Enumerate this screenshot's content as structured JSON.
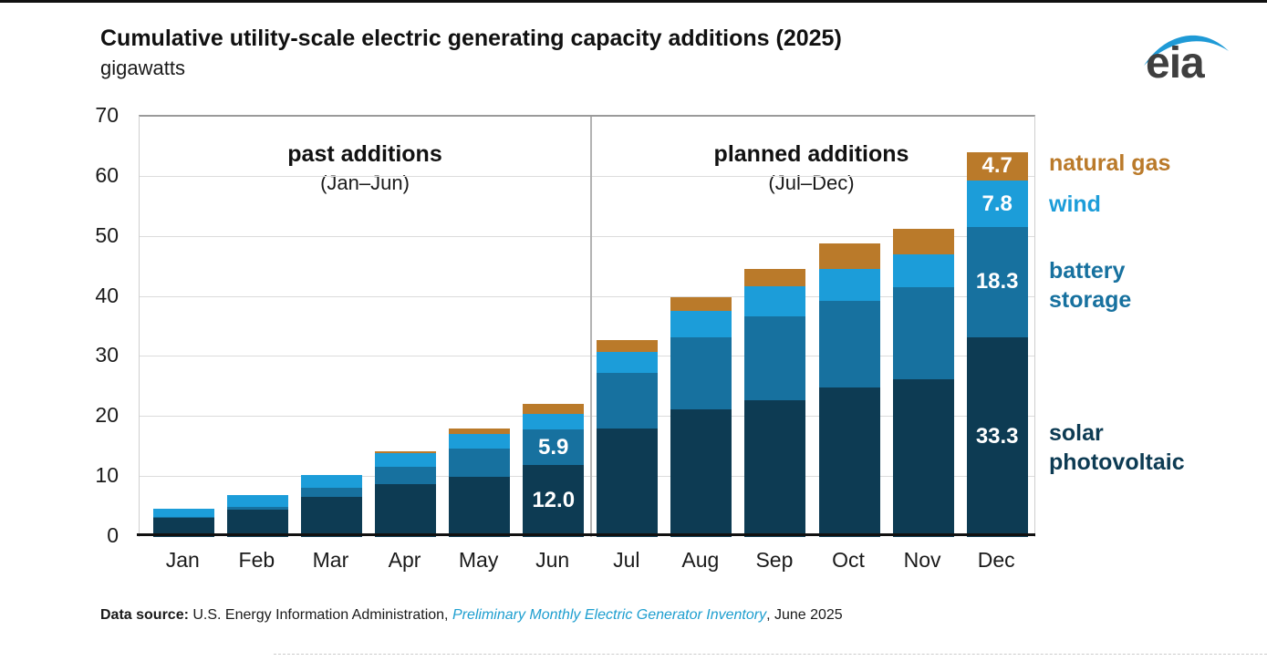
{
  "title": "Cumulative utility-scale electric generating capacity additions (2025)",
  "subtitle": "gigawatts",
  "logo_text": "eia",
  "sections": {
    "past": {
      "label": "past additions",
      "range": "(Jan–Jun)"
    },
    "planned": {
      "label": "planned additions",
      "range": "(Jul–Dec)"
    }
  },
  "legend": {
    "natural_gas": "natural gas",
    "wind": "wind",
    "battery_storage": "battery\nstorage",
    "solar_pv": "solar\nphotovoltaic"
  },
  "footer": {
    "label": "Data source:",
    "body": " U.S. Energy Information Administration, ",
    "link": "Preliminary Monthly Electric Generator Inventory",
    "suffix": ", June 2025"
  },
  "colors": {
    "solar": "#0d3b53",
    "battery_storage": "#17719f",
    "wind": "#1c9dd9",
    "natural_gas": "#ba7a2a",
    "link": "#1d9ecf",
    "logo_swoosh": "#1f9ad6"
  },
  "chart_data": {
    "type": "bar",
    "stacked": true,
    "title": "Cumulative utility-scale electric generating capacity additions (2025)",
    "ylabel": "gigawatts",
    "xlabel": "",
    "categories": [
      "Jan",
      "Feb",
      "Mar",
      "Apr",
      "May",
      "Jun",
      "Jul",
      "Aug",
      "Sep",
      "Oct",
      "Nov",
      "Dec"
    ],
    "series": [
      {
        "name": "solar photovoltaic",
        "color": "#0d3b53",
        "values": [
          3.2,
          4.6,
          6.7,
          8.8,
          10.0,
          12.0,
          18.1,
          21.2,
          22.8,
          24.9,
          26.3,
          33.3
        ]
      },
      {
        "name": "battery storage",
        "color": "#17719f",
        "values": [
          0.2,
          0.4,
          1.5,
          2.9,
          4.8,
          5.9,
          9.2,
          12.1,
          13.9,
          14.5,
          15.3,
          18.3
        ]
      },
      {
        "name": "wind",
        "color": "#1c9dd9",
        "values": [
          1.3,
          2.0,
          2.1,
          2.3,
          2.3,
          2.6,
          3.6,
          4.4,
          5.0,
          5.3,
          5.4,
          7.8
        ]
      },
      {
        "name": "natural gas",
        "color": "#ba7a2a",
        "values": [
          0.0,
          0.0,
          0.0,
          0.3,
          0.9,
          1.7,
          1.9,
          2.3,
          3.0,
          4.2,
          4.4,
          4.7
        ]
      }
    ],
    "ylim": [
      0,
      70
    ],
    "yticks": [
      0,
      10,
      20,
      30,
      40,
      50,
      60,
      70
    ],
    "grid": "horizontal",
    "divider_after_category": "Jun",
    "section_labels": [
      "past additions (Jan–Jun)",
      "planned additions (Jul–Dec)"
    ],
    "legend_position": "right",
    "legend_order": [
      "natural gas",
      "wind",
      "battery storage",
      "solar photovoltaic"
    ],
    "bar_labels": [
      {
        "category": "Jun",
        "series": "solar photovoltaic",
        "text": "12.0"
      },
      {
        "category": "Jun",
        "series": "battery storage",
        "text": "5.9"
      },
      {
        "category": "Dec",
        "series": "solar photovoltaic",
        "text": "33.3"
      },
      {
        "category": "Dec",
        "series": "battery storage",
        "text": "18.3"
      },
      {
        "category": "Dec",
        "series": "wind",
        "text": "7.8"
      },
      {
        "category": "Dec",
        "series": "natural gas",
        "text": "4.7"
      }
    ]
  }
}
